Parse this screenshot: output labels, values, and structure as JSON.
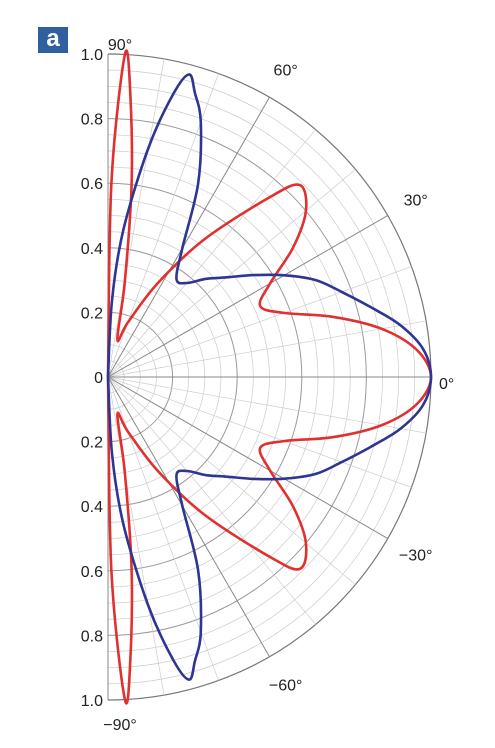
{
  "panel_label": "a",
  "chart_data": {
    "type": "polar",
    "subtype": "half-polar radiation pattern",
    "title": "",
    "radial_range": [
      0,
      1.0
    ],
    "radial_ticks": [
      "1.0",
      "0.8",
      "0.6",
      "0.4",
      "0.2",
      "0",
      "0.2",
      "0.4",
      "0.6",
      "0.8",
      "1.0"
    ],
    "angular_range_deg": [
      -90,
      90
    ],
    "angle_ticks": [
      {
        "angle": 90,
        "label": "90°"
      },
      {
        "angle": 60,
        "label": "60°"
      },
      {
        "angle": 30,
        "label": "30°"
      },
      {
        "angle": 0,
        "label": "0°"
      },
      {
        "angle": -30,
        "label": "−30°"
      },
      {
        "angle": -60,
        "label": "−60°"
      },
      {
        "angle": -90,
        "label": "−90°"
      }
    ],
    "grid": true,
    "series": [
      {
        "color": "#e03030",
        "symmetric_about_0": true,
        "points": [
          {
            "theta": 0,
            "r": 1.0
          },
          {
            "theta": 5,
            "r": 0.96
          },
          {
            "theta": 10,
            "r": 0.86
          },
          {
            "theta": 15,
            "r": 0.72
          },
          {
            "theta": 20,
            "r": 0.58
          },
          {
            "theta": 25,
            "r": 0.52
          },
          {
            "theta": 30,
            "r": 0.58
          },
          {
            "theta": 35,
            "r": 0.7
          },
          {
            "theta": 40,
            "r": 0.8
          },
          {
            "theta": 45,
            "r": 0.84
          },
          {
            "theta": 48,
            "r": 0.75
          },
          {
            "theta": 55,
            "r": 0.52
          },
          {
            "theta": 62,
            "r": 0.33
          },
          {
            "theta": 70,
            "r": 0.18
          },
          {
            "theta": 76,
            "r": 0.12
          },
          {
            "theta": 80,
            "r": 0.3
          },
          {
            "theta": 83,
            "r": 0.6
          },
          {
            "theta": 85.5,
            "r": 0.88
          },
          {
            "theta": 87,
            "r": 1.0
          },
          {
            "theta": 89,
            "r": 0.6
          },
          {
            "theta": 90,
            "r": 0.0
          }
        ]
      },
      {
        "color": "#2e3592",
        "symmetric_about_0": true,
        "points": [
          {
            "theta": 0,
            "r": 1.0
          },
          {
            "theta": 5,
            "r": 0.98
          },
          {
            "theta": 10,
            "r": 0.92
          },
          {
            "theta": 15,
            "r": 0.84
          },
          {
            "theta": 20,
            "r": 0.77
          },
          {
            "theta": 25,
            "r": 0.71
          },
          {
            "theta": 30,
            "r": 0.63
          },
          {
            "theta": 35,
            "r": 0.55
          },
          {
            "theta": 40,
            "r": 0.48
          },
          {
            "theta": 45,
            "r": 0.43
          },
          {
            "theta": 50,
            "r": 0.38
          },
          {
            "theta": 55,
            "r": 0.37
          },
          {
            "theta": 60,
            "r": 0.46
          },
          {
            "theta": 65,
            "r": 0.66
          },
          {
            "theta": 70,
            "r": 0.84
          },
          {
            "theta": 73,
            "r": 0.92
          },
          {
            "theta": 75,
            "r": 0.97
          },
          {
            "theta": 77,
            "r": 0.9
          },
          {
            "theta": 80,
            "r": 0.72
          },
          {
            "theta": 84,
            "r": 0.46
          },
          {
            "theta": 87,
            "r": 0.24
          },
          {
            "theta": 90,
            "r": 0.0
          }
        ]
      }
    ]
  }
}
